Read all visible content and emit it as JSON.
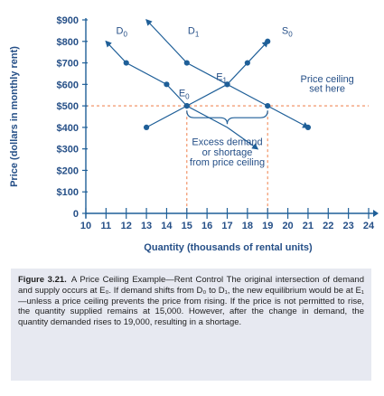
{
  "chart_data": {
    "type": "line",
    "xlabel": "Quantity (thousands of rental units)",
    "ylabel": "Price (dollars in monthly rent)",
    "xlim": [
      10,
      24
    ],
    "ylim": [
      0,
      900
    ],
    "x_ticks": [
      10,
      11,
      12,
      13,
      14,
      15,
      16,
      17,
      18,
      19,
      20,
      21,
      22,
      23,
      24
    ],
    "y_ticks": [
      "0",
      "$100",
      "$200",
      "$300",
      "$400",
      "$500",
      "$600",
      "$700",
      "$800",
      "$900"
    ],
    "y_tick_values": [
      0,
      100,
      200,
      300,
      400,
      500,
      600,
      700,
      800,
      900
    ],
    "series": [
      {
        "name": "D0",
        "label_main": "D",
        "label_sub": "0",
        "points": [
          [
            11,
            800
          ],
          [
            12,
            700
          ],
          [
            14,
            600
          ],
          [
            15,
            500
          ],
          [
            17,
            400
          ],
          [
            18.5,
            300
          ]
        ],
        "marker_points": [
          [
            12,
            700
          ],
          [
            14,
            600
          ],
          [
            15,
            500
          ]
        ]
      },
      {
        "name": "D1",
        "label_main": "D",
        "label_sub": "1",
        "points": [
          [
            13,
            900
          ],
          [
            15,
            700
          ],
          [
            17,
            600
          ],
          [
            19,
            500
          ],
          [
            21,
            400
          ]
        ],
        "marker_points": [
          [
            15,
            700
          ],
          [
            17,
            600
          ],
          [
            19,
            500
          ],
          [
            21,
            400
          ]
        ]
      },
      {
        "name": "S0",
        "label_main": "S",
        "label_sub": "0",
        "points": [
          [
            13,
            400
          ],
          [
            15,
            500
          ],
          [
            17,
            600
          ],
          [
            18,
            700
          ],
          [
            19,
            800
          ]
        ],
        "marker_points": [
          [
            13,
            400
          ],
          [
            15,
            500
          ],
          [
            17,
            600
          ],
          [
            18,
            700
          ],
          [
            19,
            800
          ]
        ]
      }
    ],
    "price_ceiling": 500,
    "vertical_guides": [
      15,
      19
    ],
    "equilibria": [
      {
        "label_main": "E",
        "label_sub": "0",
        "x": 15,
        "y": 500
      },
      {
        "label_main": "E",
        "label_sub": "1",
        "x": 17,
        "y": 600
      }
    ],
    "price_ceiling_label": [
      "Price ceiling",
      "set here"
    ],
    "shortage_label": [
      "Excess demand",
      "or shortage",
      "from price ceiling"
    ],
    "shortage_bracket": [
      15,
      19
    ]
  },
  "caption": {
    "label": "Figure 3.21.",
    "text": "A Price Ceiling Example—Rent Control The original intersection of demand and supply occurs at E₀. If demand shifts from D₀ to D₁, the new equilibrium would be at E₁—unless a price ceiling prevents the price from rising. If the price is not permitted to rise, the quantity supplied remains at 15,000. However, after the change in demand, the quantity demanded rises to 19,000, resulting in a shortage."
  },
  "colors": {
    "curve": "#1f5f98",
    "text": "#254f87",
    "guide": "#f08a5a",
    "caption_bg": "#e7e9f1"
  }
}
